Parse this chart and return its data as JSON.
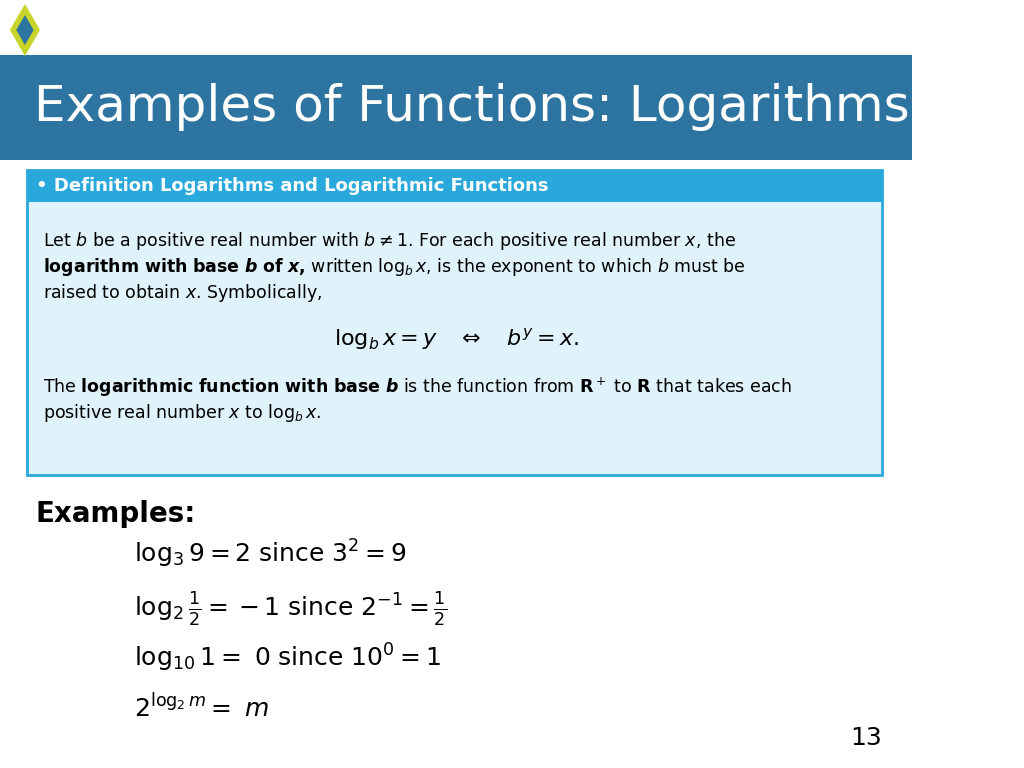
{
  "title": "Examples of Functions: Logarithms",
  "title_bg_color": "#2E74A0",
  "title_text_color": "#FFFFFF",
  "diamond_outer_color": "#C8D42A",
  "diamond_inner_color": "#2E74A0",
  "def_box_bg": "#E0F2FA",
  "def_box_border": "#29A8DC",
  "def_header_bg": "#29A8DC",
  "def_header_text": "• Definition Logarithms and Logarithmic Functions",
  "def_header_color": "#FFFFFF",
  "page_bg": "#FFFFFF",
  "page_number": "13"
}
